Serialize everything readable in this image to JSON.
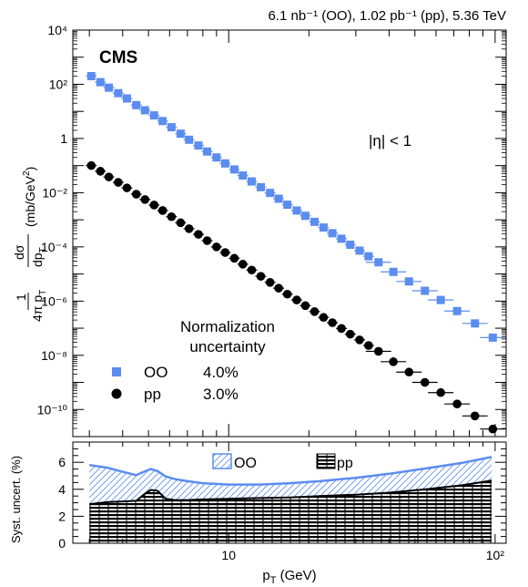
{
  "header": {
    "lumi_text": "6.1 nb⁻¹ (OO), 1.02 pb⁻¹ (pp), 5.36 TeV",
    "experiment": "CMS",
    "eta_cut": "|η| < 1"
  },
  "colors": {
    "oo": "#5b8def",
    "pp": "#000000"
  },
  "chart_data": [
    {
      "type": "scatter",
      "panel": "top",
      "xlabel": "p_T (GeV)",
      "ylabel": "1/(4π p_T) dσ/dp_T (mb/GeV²)",
      "xscale": "log",
      "yscale": "log",
      "xlim": [
        2.6,
        110
      ],
      "ylim": [
        1e-11,
        10000.0
      ],
      "yticks": [
        "10⁴",
        "10²",
        "1",
        "10⁻²",
        "10⁻⁴",
        "10⁻⁶",
        "10⁻⁸",
        "10⁻¹⁰"
      ],
      "xticks": [
        "10",
        "10²"
      ],
      "legend": {
        "title_line1": "Normalization",
        "title_line2": "uncertainty",
        "placement": "bottom-left",
        "entries": [
          {
            "name": "OO",
            "value": "4.0%"
          },
          {
            "name": "pp",
            "value": "3.0%"
          }
        ]
      },
      "series": [
        {
          "name": "OO",
          "x": [
            3.05,
            3.3,
            3.55,
            3.85,
            4.15,
            4.5,
            4.85,
            5.25,
            5.65,
            6.1,
            6.6,
            7.1,
            7.7,
            8.3,
            9.0,
            9.7,
            10.5,
            11.3,
            12.2,
            13.2,
            14.3,
            15.4,
            16.6,
            18.0,
            19.4,
            21.0,
            22.7,
            24.5,
            26.5,
            28.6,
            31.0,
            33.5,
            36.5,
            41.5,
            47.5,
            54.5,
            62.5,
            72.0,
            84.0,
            98.0
          ],
          "y": [
            200,
            120,
            75,
            47,
            30,
            17,
            11,
            7.1,
            4.4,
            2.6,
            1.5,
            0.9,
            0.55,
            0.33,
            0.2,
            0.12,
            0.072,
            0.043,
            0.026,
            0.016,
            0.0098,
            0.006,
            0.0036,
            0.0022,
            0.0014,
            0.00084,
            0.00052,
            0.00032,
            0.0002,
            0.00012,
            7.3e-05,
            4.5e-05,
            2.7e-05,
            1.2e-05,
            5.3e-06,
            2.4e-06,
            1.1e-06,
            4.3e-07,
            1.5e-07,
            4.5e-08
          ]
        },
        {
          "name": "pp",
          "x": [
            3.05,
            3.3,
            3.55,
            3.85,
            4.15,
            4.5,
            4.85,
            5.25,
            5.65,
            6.1,
            6.6,
            7.1,
            7.7,
            8.3,
            9.0,
            9.7,
            10.5,
            11.3,
            12.2,
            13.2,
            14.3,
            15.4,
            16.6,
            18.0,
            19.4,
            21.0,
            22.7,
            24.5,
            26.5,
            28.6,
            31.0,
            33.5,
            36.5,
            41.5,
            47.5,
            54.5,
            62.5,
            72.0,
            84.0,
            98.0
          ],
          "y": [
            0.1,
            0.062,
            0.038,
            0.024,
            0.015,
            0.0088,
            0.0056,
            0.0035,
            0.0022,
            0.0013,
            0.00078,
            0.00047,
            0.00029,
            0.00017,
            0.0001,
            6.2e-05,
            3.8e-05,
            2.3e-05,
            1.4e-05,
            8.2e-06,
            4.9e-06,
            3e-06,
            1.8e-06,
            1.1e-06,
            6.8e-07,
            4.1e-07,
            2.5e-07,
            1.6e-07,
            9.8e-08,
            6e-08,
            3.7e-08,
            2.3e-08,
            1.4e-08,
            5.8e-09,
            2.4e-09,
            1e-09,
            4.2e-10,
            1.6e-10,
            5.8e-11,
            1.9e-11
          ]
        }
      ]
    },
    {
      "type": "area",
      "panel": "bottom",
      "xlabel": "p_T (GeV)",
      "ylabel": "Syst. uncert. (%)",
      "xscale": "log",
      "xlim": [
        2.6,
        110
      ],
      "ylim": [
        0,
        7.5
      ],
      "yticks": [
        "0",
        "2",
        "4",
        "6"
      ],
      "legend": {
        "placement": "top-center",
        "entries": [
          "OO",
          "pp"
        ]
      },
      "series": [
        {
          "name": "OO",
          "x": [
            3.0,
            3.5,
            4.0,
            4.5,
            4.8,
            5.1,
            5.4,
            5.8,
            6.3,
            7.0,
            8.0,
            10.0,
            13.0,
            17.0,
            22.0,
            30.0,
            40.0,
            55.0,
            75.0,
            97.0
          ],
          "y": [
            5.8,
            5.6,
            5.3,
            5.05,
            5.3,
            5.5,
            5.35,
            4.95,
            4.75,
            4.6,
            4.45,
            4.35,
            4.35,
            4.45,
            4.6,
            4.85,
            5.15,
            5.55,
            5.95,
            6.4
          ]
        },
        {
          "name": "pp",
          "x": [
            3.0,
            3.5,
            4.0,
            4.5,
            4.8,
            5.1,
            5.4,
            5.8,
            6.3,
            7.0,
            8.0,
            10.0,
            13.0,
            17.0,
            22.0,
            30.0,
            40.0,
            55.0,
            75.0,
            97.0
          ],
          "y": [
            2.9,
            3.05,
            3.1,
            3.15,
            3.6,
            3.95,
            3.9,
            3.3,
            3.2,
            3.2,
            3.25,
            3.3,
            3.35,
            3.4,
            3.5,
            3.6,
            3.75,
            4.0,
            4.3,
            4.65
          ]
        }
      ]
    }
  ]
}
